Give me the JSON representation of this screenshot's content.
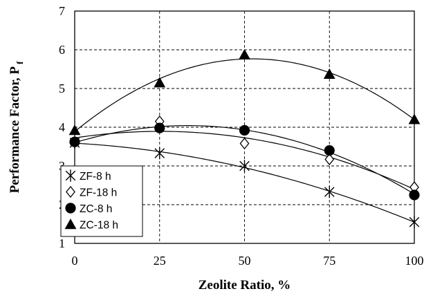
{
  "chart_data": {
    "type": "scatter",
    "xlabel": "Zeolite Ratio, %",
    "ylabel": "Performance Factor, P",
    "ylabel_subscript": "f",
    "xlim": [
      0,
      100
    ],
    "ylim": [
      1,
      7
    ],
    "xticks": [
      "0",
      "25",
      "50",
      "75",
      "100"
    ],
    "yticks": [
      "1",
      "2",
      "3",
      "4",
      "5",
      "6",
      "7"
    ],
    "grid": true,
    "trendlines": "quadratic",
    "legend_position": "bottom-left",
    "series": [
      {
        "name": "ZF-8 h",
        "marker": "star",
        "x": [
          0,
          25,
          50,
          75,
          100
        ],
        "y": [
          3.6,
          3.33,
          3.0,
          2.33,
          1.55
        ]
      },
      {
        "name": "ZF-18 h",
        "marker": "diamond-open",
        "x": [
          0,
          25,
          50,
          75,
          100
        ],
        "y": [
          3.62,
          4.15,
          3.58,
          3.17,
          2.45
        ]
      },
      {
        "name": "ZC-8 h",
        "marker": "circle-filled",
        "x": [
          0,
          25,
          50,
          75,
          100
        ],
        "y": [
          3.62,
          3.98,
          3.92,
          3.4,
          2.25
        ]
      },
      {
        "name": "ZC-18 h",
        "marker": "triangle-filled",
        "x": [
          0,
          25,
          50,
          75,
          100
        ],
        "y": [
          3.92,
          5.15,
          5.87,
          5.37,
          4.2
        ]
      }
    ]
  }
}
